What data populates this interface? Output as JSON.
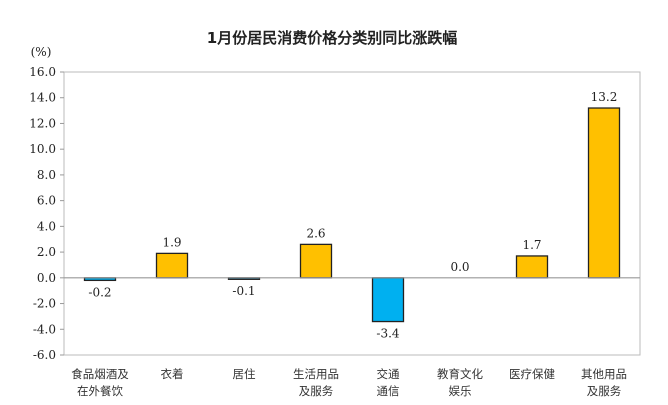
{
  "chart_data": {
    "type": "bar",
    "title": "1月份居民消费价格分类别同比涨跌幅",
    "ylabel": "(%)",
    "xlabel": "",
    "ylim": [
      -6.0,
      16.0
    ],
    "yticks": [
      "16.0",
      "14.0",
      "12.0",
      "10.0",
      "8.0",
      "6.0",
      "4.0",
      "2.0",
      "0.0",
      "-2.0",
      "-4.0",
      "-6.0"
    ],
    "grid": false,
    "categories": [
      [
        "食品烟酒及",
        "在外餐饮"
      ],
      [
        "衣着"
      ],
      [
        "居住"
      ],
      [
        "生活用品",
        "及服务"
      ],
      [
        "交通",
        "通信"
      ],
      [
        "教育文化",
        "娱乐"
      ],
      [
        "医疗保健"
      ],
      [
        "其他用品",
        "及服务"
      ]
    ],
    "values": [
      -0.2,
      1.9,
      -0.1,
      2.6,
      -3.4,
      0.0,
      1.7,
      13.2
    ],
    "data_labels": [
      "-0.2",
      "1.9",
      "-0.1",
      "2.6",
      "-3.4",
      "0.0",
      "1.7",
      "13.2"
    ],
    "colors": {
      "positive": "#FFC000",
      "negative": "#00B0F0",
      "zero_line": "#999999"
    }
  }
}
